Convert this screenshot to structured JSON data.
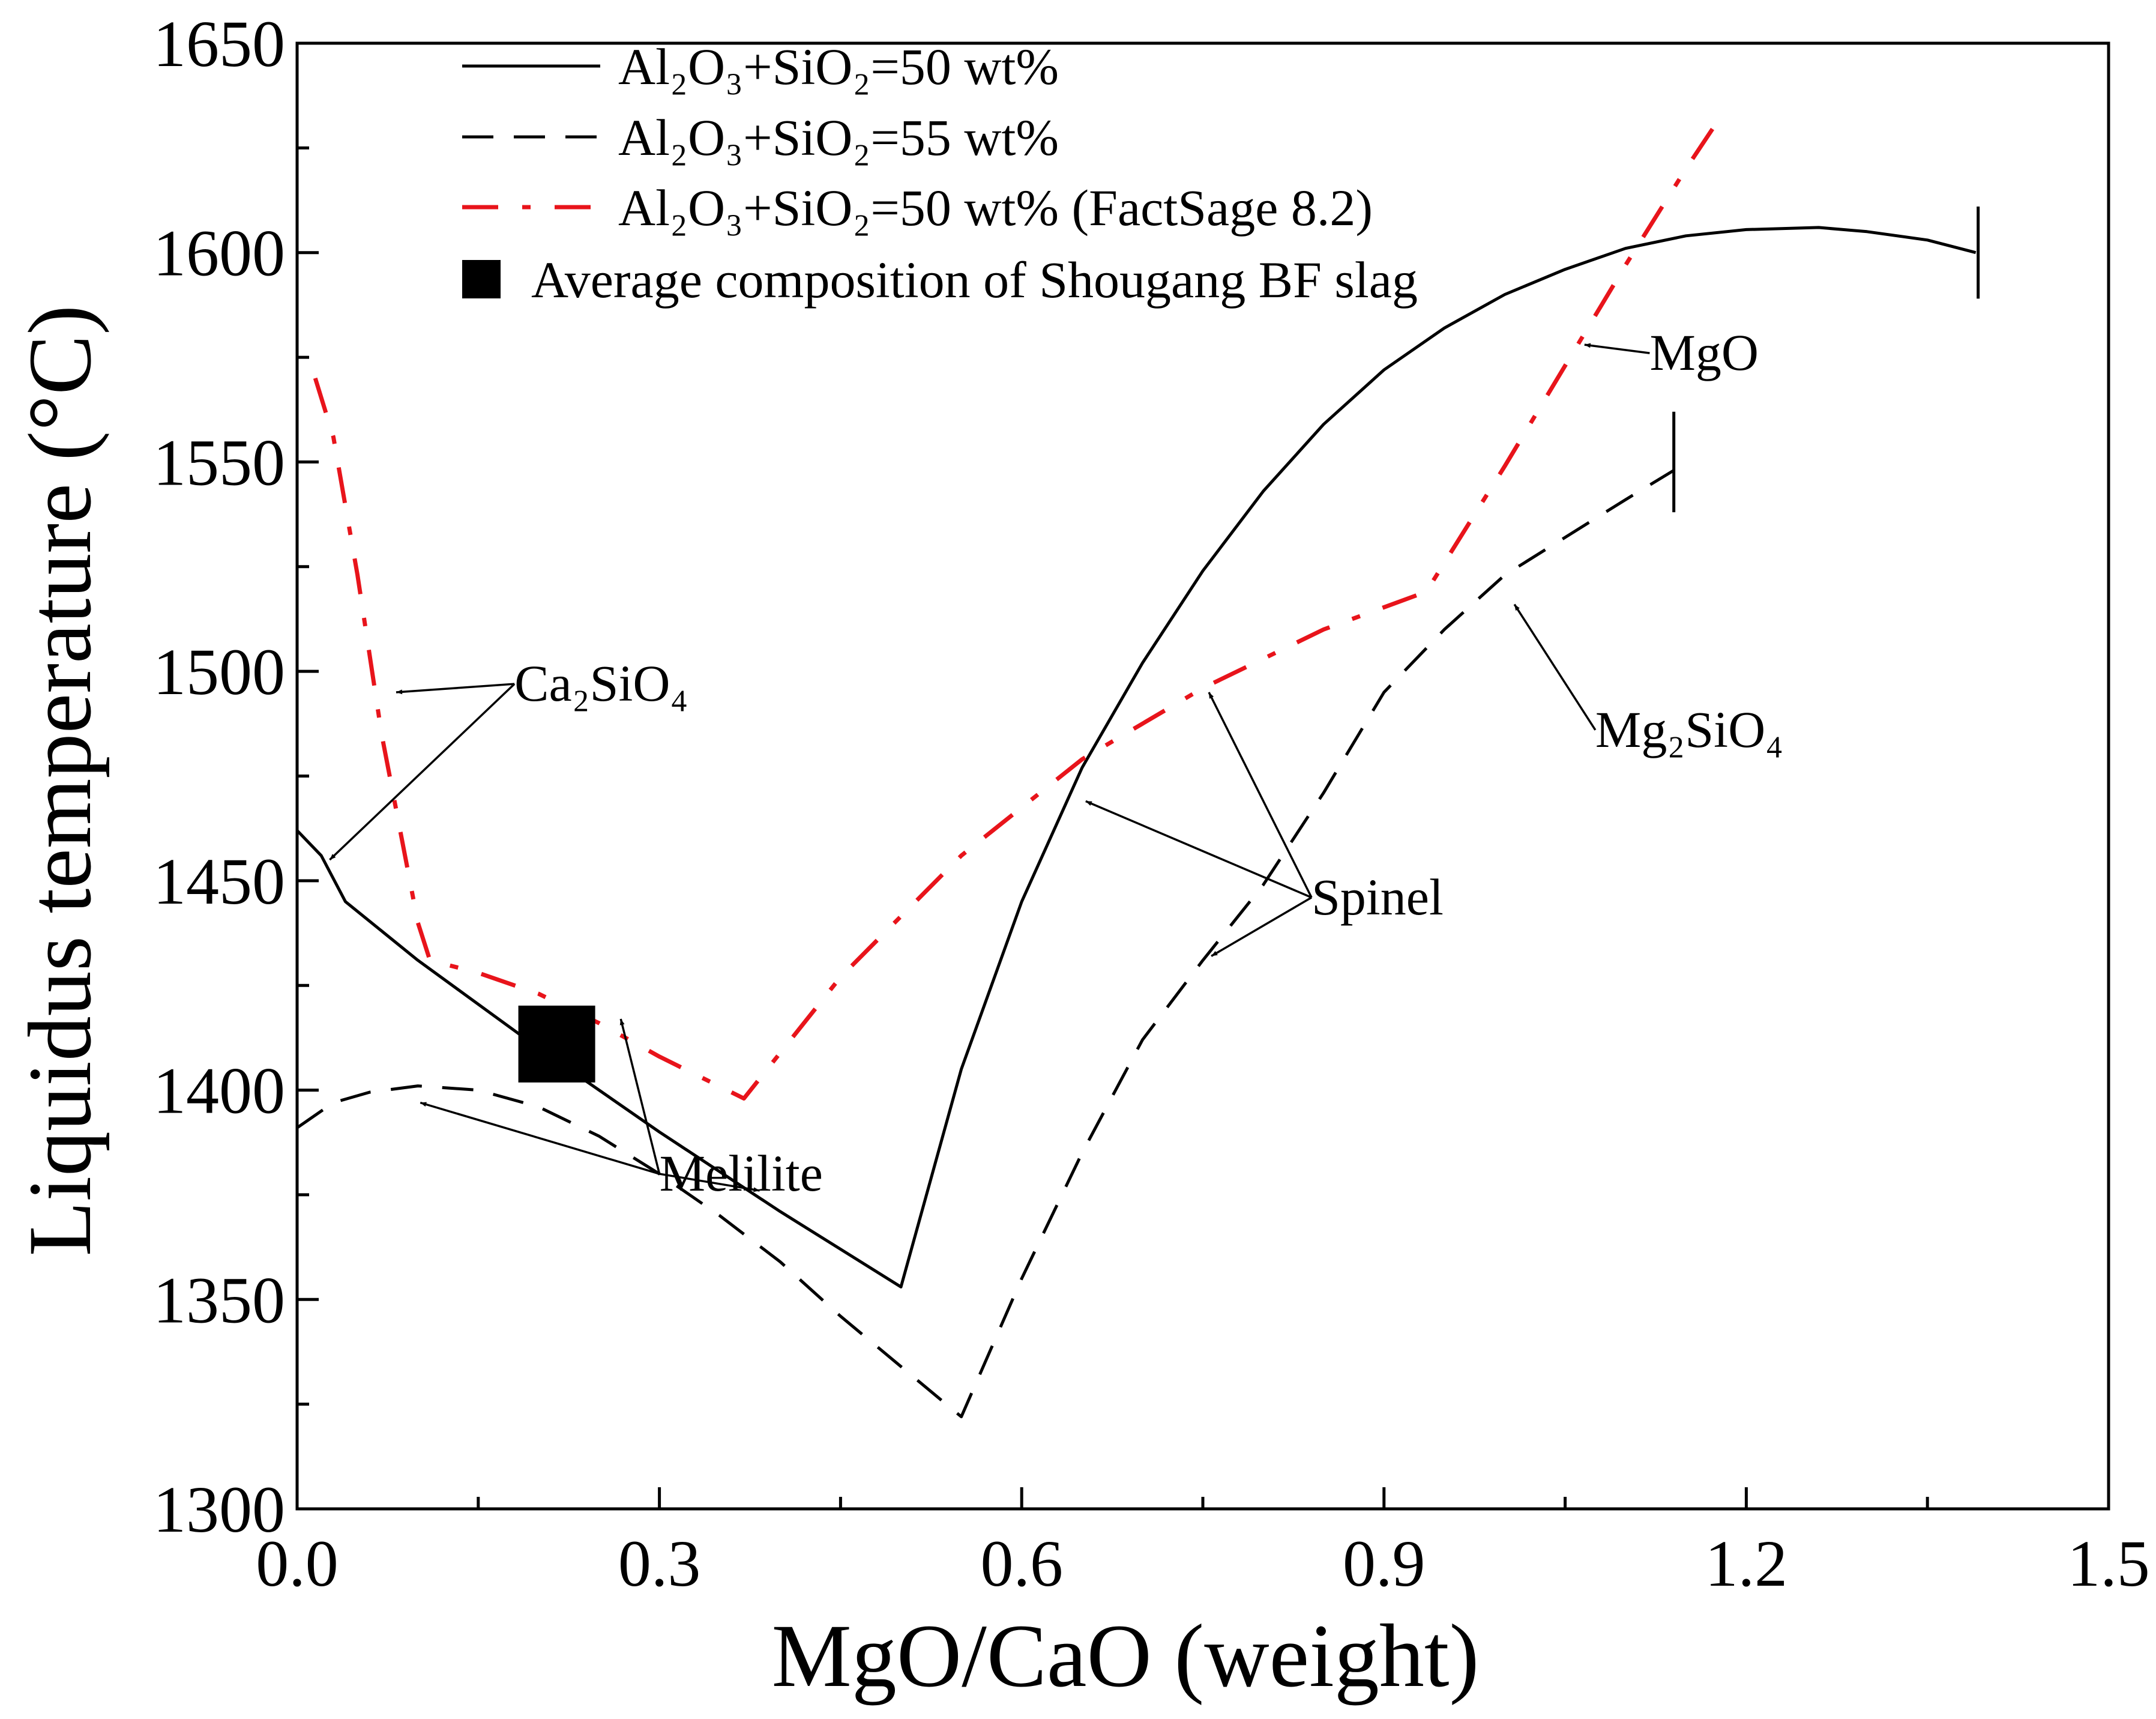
{
  "chart_data": {
    "type": "line",
    "xlabel": "MgO/CaO (weight)",
    "ylabel": "Liquidus temperature (°C)",
    "xlim": [
      0,
      1.5
    ],
    "ylim": [
      1300,
      1650
    ],
    "x_ticks": [
      0.0,
      0.3,
      0.6,
      0.9,
      1.2,
      1.5
    ],
    "x_tick_labels": [
      "0.0",
      "0.3",
      "0.6",
      "0.9",
      "1.2",
      "1.5"
    ],
    "x_minor_ticks": [
      0.15,
      0.45,
      0.75,
      1.05,
      1.35
    ],
    "y_ticks": [
      1300,
      1350,
      1400,
      1450,
      1500,
      1550,
      1600,
      1650
    ],
    "y_tick_labels": [
      "1300",
      "1350",
      "1400",
      "1450",
      "1500",
      "1550",
      "1600",
      "1650"
    ],
    "y_minor_ticks": [
      1325,
      1375,
      1425,
      1475,
      1525,
      1575,
      1625
    ],
    "grid": false,
    "legend_position": "top-left",
    "series": [
      {
        "name": "Al₂O₃+SiO₂=50 wt%",
        "style": "solid",
        "color": "#000000",
        "x": [
          0,
          0.02,
          0.04,
          0.1,
          0.2,
          0.3,
          0.4,
          0.5,
          0.55,
          0.6,
          0.65,
          0.7,
          0.75,
          0.8,
          0.85,
          0.9,
          0.95,
          1.0,
          1.05,
          1.1,
          1.15,
          1.2,
          1.26,
          1.3,
          1.35,
          1.39
        ],
        "y": [
          1462,
          1456,
          1445,
          1431,
          1410,
          1390,
          1371,
          1353,
          1405,
          1445,
          1477,
          1502,
          1524,
          1543,
          1559,
          1572,
          1582,
          1590,
          1596,
          1601,
          1604,
          1605.5,
          1606,
          1605,
          1603,
          1600
        ]
      },
      {
        "name": "Al₂O₃+SiO₂=55 wt%",
        "style": "dashed",
        "color": "#000000",
        "x": [
          0,
          0.03,
          0.06,
          0.1,
          0.15,
          0.2,
          0.25,
          0.3,
          0.35,
          0.4,
          0.45,
          0.5,
          0.55,
          0.6,
          0.65,
          0.7,
          0.75,
          0.8,
          0.85,
          0.9,
          0.95,
          1.0,
          1.05,
          1.1,
          1.14
        ],
        "y": [
          1391,
          1397,
          1399.5,
          1401,
          1400,
          1396,
          1389,
          1380,
          1370,
          1359,
          1346,
          1334,
          1322,
          1355,
          1385,
          1412,
          1431,
          1449,
          1471,
          1495,
          1510,
          1523,
          1532,
          1541,
          1548
        ]
      },
      {
        "name": "Al₂O₃+SiO₂=50 wt% (FactSage 8.2)",
        "style": "dash-dot",
        "color": "#e8141b",
        "x": [
          0.015,
          0.03,
          0.05,
          0.07,
          0.09,
          0.1,
          0.11,
          0.15,
          0.2,
          0.25,
          0.3,
          0.37,
          0.45,
          0.55,
          0.65,
          0.75,
          0.85,
          0.935,
          1.0,
          1.05,
          1.1,
          1.15,
          1.18
        ],
        "y": [
          1570,
          1556,
          1523,
          1485,
          1455,
          1440,
          1431,
          1428,
          1423,
          1416,
          1408,
          1398,
          1427,
          1456,
          1479,
          1496,
          1510,
          1519,
          1549,
          1573,
          1597,
          1620,
          1633
        ]
      }
    ],
    "points": [
      {
        "name": "Average composition of Shougang BF slag",
        "x": 0.215,
        "y": 1411,
        "marker": "square",
        "color": "#000000"
      }
    ],
    "end_markers": [
      {
        "x": 1.392,
        "y_low": 1589,
        "y_high": 1611
      },
      {
        "x": 1.14,
        "y_low": 1538,
        "y_high": 1562
      }
    ],
    "annotations": [
      {
        "text": "Ca₂SiO₄",
        "x": 0.18,
        "y": 1497,
        "targets": [
          {
            "x": 0.082,
            "y": 1495
          },
          {
            "x": 0.027,
            "y": 1455
          }
        ]
      },
      {
        "text": "Melilite",
        "x": 0.3,
        "y": 1380,
        "targets": [
          {
            "x": 0.102,
            "y": 1397
          },
          {
            "x": 0.268,
            "y": 1417
          },
          {
            "x": 0.383,
            "y": 1376
          }
        ]
      },
      {
        "text": "Spinel",
        "x": 0.84,
        "y": 1446,
        "targets": [
          {
            "x": 0.653,
            "y": 1469
          },
          {
            "x": 0.755,
            "y": 1495
          },
          {
            "x": 0.757,
            "y": 1432
          }
        ]
      },
      {
        "text": "MgO",
        "x": 1.12,
        "y": 1576,
        "targets": [
          {
            "x": 1.066,
            "y": 1578
          }
        ]
      },
      {
        "text": "Mg₂SiO₄",
        "x": 1.075,
        "y": 1486,
        "targets": [
          {
            "x": 1.008,
            "y": 1516
          }
        ]
      }
    ]
  }
}
